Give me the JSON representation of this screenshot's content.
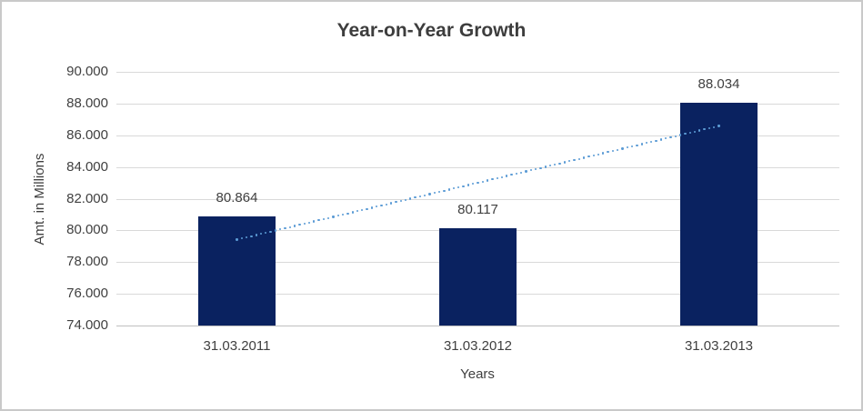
{
  "window": {
    "background": "#ffffff",
    "border_color": "#c9c9c9"
  },
  "chart_data": {
    "type": "bar",
    "title": "Year-on-Year Growth",
    "xlabel": "Years",
    "ylabel": "Amt. in Millions",
    "categories": [
      "31.03.2011",
      "31.03.2012",
      "31.03.2013"
    ],
    "values": [
      80.864,
      80.117,
      88.034
    ],
    "value_labels": [
      "80.864",
      "80.117",
      "88.034"
    ],
    "ylim": [
      74,
      90
    ],
    "ytick_step": 2,
    "ytick_labels": [
      "74.000",
      "76.000",
      "78.000",
      "80.000",
      "82.000",
      "84.000",
      "86.000",
      "88.000",
      "90.000"
    ],
    "grid": true,
    "legend": false,
    "bar_color": "#0a2260",
    "gridline_color": "#d9d9d9",
    "axis_line_color": "#bfbfbf",
    "text_color": "#404040",
    "trendline": {
      "type": "linear",
      "style": "dotted",
      "color": "#5b9bd5",
      "start_index": 0,
      "end_index": 2,
      "start_value": 79.42,
      "end_value": 86.59
    }
  }
}
